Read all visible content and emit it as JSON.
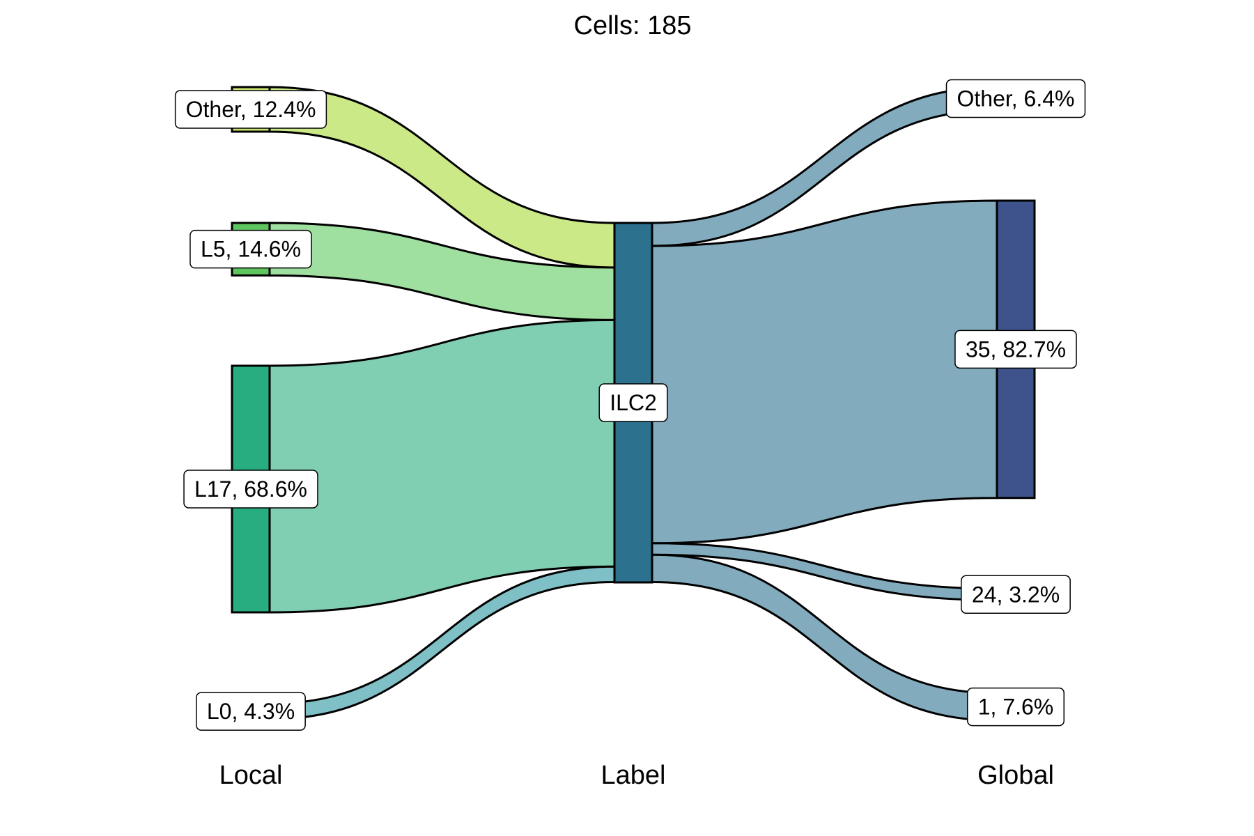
{
  "chart_data": {
    "type": "sankey",
    "title": "Cells:  185",
    "total": 185,
    "axes": [
      "Local",
      "Label",
      "Global"
    ],
    "nodes": {
      "local": [
        {
          "label": "Other, 12.4%",
          "value": 12.4,
          "color": "#c9e56f"
        },
        {
          "label": "L5, 14.6%",
          "value": 14.6,
          "color": "#5fc65f"
        },
        {
          "label": "L17, 68.6%",
          "value": 68.6,
          "color": "#28ad81"
        },
        {
          "label": "L0, 4.3%",
          "value": 4.3,
          "color": "#2f9c9e"
        }
      ],
      "label": [
        {
          "label": "ILC2",
          "value": 100,
          "color": "#2c718e"
        }
      ],
      "global": [
        {
          "label": "Other, 6.4%",
          "value": 6.4,
          "color": "#4a8fa6"
        },
        {
          "label": "35, 82.7%",
          "value": 82.7,
          "color": "#3e538b"
        },
        {
          "label": "24, 3.2%",
          "value": 3.2,
          "color": "#3b6f8e"
        },
        {
          "label": "1, 7.6%",
          "value": 7.6,
          "color": "#3b7a95"
        }
      ]
    },
    "flows_left": [
      {
        "from": "Other, 12.4%",
        "to": "ILC2",
        "value": 12.4,
        "color": "#cbe986"
      },
      {
        "from": "L5, 14.6%",
        "to": "ILC2",
        "value": 14.6,
        "color": "#9fdf9f"
      },
      {
        "from": "L17, 68.6%",
        "to": "ILC2",
        "value": 68.6,
        "color": "#80cfb3"
      },
      {
        "from": "L0, 4.3%",
        "to": "ILC2",
        "value": 4.3,
        "color": "#7fc0c6"
      }
    ],
    "flows_right": [
      {
        "from": "ILC2",
        "to": "Other, 6.4%",
        "value": 6.4,
        "color": "#82abbd"
      },
      {
        "from": "ILC2",
        "to": "35, 82.7%",
        "value": 82.7,
        "color": "#82abbd"
      },
      {
        "from": "ILC2",
        "to": "24, 3.2%",
        "value": 3.2,
        "color": "#82abbd"
      },
      {
        "from": "ILC2",
        "to": "1, 7.6%",
        "value": 7.6,
        "color": "#82abbd"
      }
    ]
  }
}
